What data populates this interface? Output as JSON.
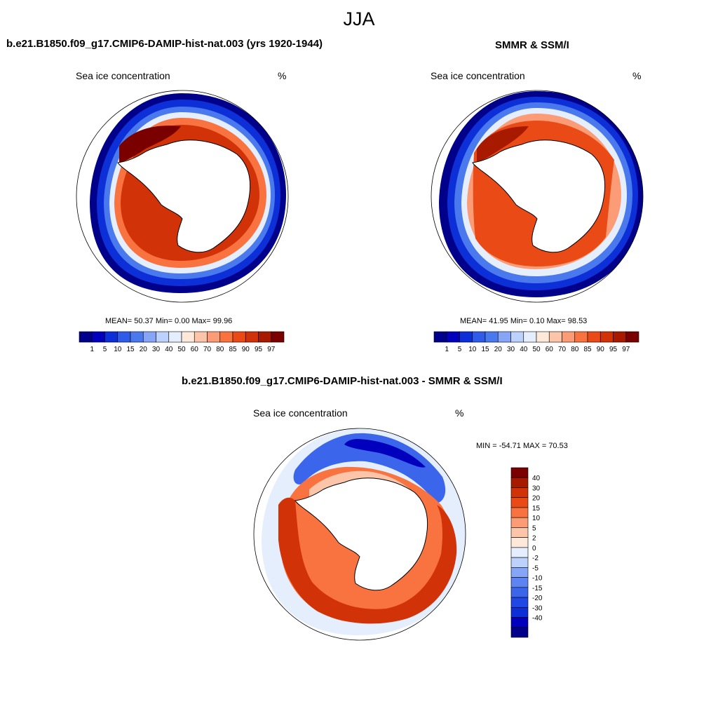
{
  "season": "JJA",
  "colors": {
    "abs_palette": [
      "#00008a",
      "#0000bd",
      "#0c2fd8",
      "#2f5be8",
      "#4a79ee",
      "#86a5f6",
      "#bcd1fb",
      "#e4eefc",
      "#fde8da",
      "#fcc4a8",
      "#fb9c76",
      "#f8733f",
      "#ea4a16",
      "#d13208",
      "#a81a00",
      "#7a0000"
    ],
    "diff_palette": [
      "#00008a",
      "#0000bd",
      "#0c2fd8",
      "#1f48e4",
      "#3b66ec",
      "#5d84f2",
      "#86a5f6",
      "#bcd1fb",
      "#e4eefc",
      "#fde8da",
      "#fcc4a8",
      "#fb9c76",
      "#f8733f",
      "#ea4a16",
      "#d13208",
      "#a81a00",
      "#7a0000"
    ]
  },
  "panels": {
    "model": {
      "title": "b.e21.B1850.f09_g17.CMIP6-DAMIP-hist-nat.003 (yrs 1920-1944)",
      "variable": "Sea ice concentration",
      "units": "%",
      "stats": "MEAN=  50.37  Min=   0.00  Max=  99.96"
    },
    "obs": {
      "title": "SMMR & SSM/I",
      "variable": "Sea ice concentration",
      "units": "%",
      "stats": "MEAN=  41.95  Min=   0.10  Max=  98.53"
    },
    "diff": {
      "title": "b.e21.B1850.f09_g17.CMIP6-DAMIP-hist-nat.003 - SMMR & SSM/I",
      "variable": "Sea ice concentration",
      "units": "%",
      "stats": "MIN = -54.71 MAX =  70.53"
    }
  },
  "chart_data": [
    {
      "type": "heatmap",
      "projection": "south polar stereographic",
      "title": "b.e21.B1850.f09_g17.CMIP6-DAMIP-hist-nat.003 (yrs 1920-1944)",
      "variable": "Sea ice concentration",
      "units": "%",
      "mean": 50.37,
      "min": 0.0,
      "max": 99.96,
      "contour_levels": [
        1,
        5,
        10,
        15,
        20,
        30,
        40,
        50,
        60,
        70,
        80,
        85,
        90,
        95,
        97
      ],
      "colorbar_labels": [
        "1",
        "5",
        "10",
        "15",
        "20",
        "30",
        "40",
        "50",
        "60",
        "70",
        "80",
        "85",
        "90",
        "95",
        "97"
      ]
    },
    {
      "type": "heatmap",
      "projection": "south polar stereographic",
      "title": "SMMR & SSM/I",
      "variable": "Sea ice concentration",
      "units": "%",
      "mean": 41.95,
      "min": 0.1,
      "max": 98.53,
      "contour_levels": [
        1,
        5,
        10,
        15,
        20,
        30,
        40,
        50,
        60,
        70,
        80,
        85,
        90,
        95,
        97
      ],
      "colorbar_labels": [
        "1",
        "5",
        "10",
        "15",
        "20",
        "30",
        "40",
        "50",
        "60",
        "70",
        "80",
        "85",
        "90",
        "95",
        "97"
      ]
    },
    {
      "type": "heatmap",
      "projection": "south polar stereographic",
      "title": "b.e21.B1850.f09_g17.CMIP6-DAMIP-hist-nat.003 - SMMR & SSM/I",
      "variable": "Sea ice concentration",
      "units": "%",
      "min": -54.71,
      "max": 70.53,
      "contour_levels": [
        -40,
        -30,
        -20,
        -15,
        -10,
        -5,
        -2,
        0,
        2,
        5,
        10,
        15,
        20,
        30,
        40
      ],
      "colorbar_labels": [
        "40",
        "30",
        "20",
        "15",
        "10",
        "5",
        "2",
        "0",
        "-2",
        "-5",
        "-10",
        "-15",
        "-20",
        "-30",
        "-40"
      ]
    }
  ]
}
